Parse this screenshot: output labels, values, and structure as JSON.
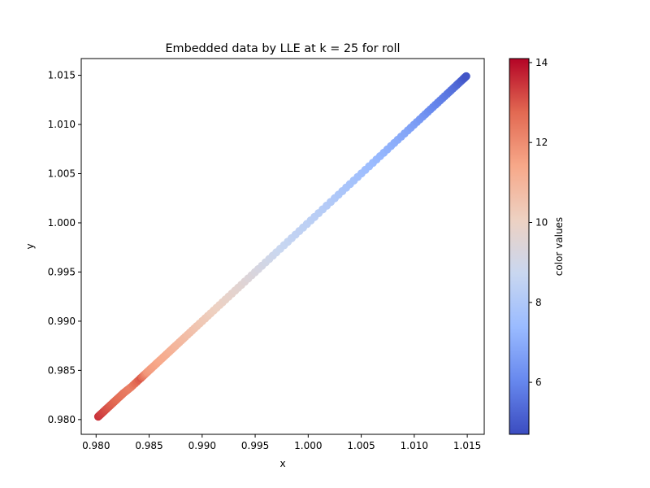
{
  "chart_data": {
    "type": "scatter",
    "title": "Embedded data by LLE at k = 25 for roll",
    "xlabel": "x",
    "ylabel": "y",
    "xlim": [
      0.9786,
      1.0166
    ],
    "ylim": [
      0.9785,
      1.0167
    ],
    "xticks": [
      0.98,
      0.985,
      0.99,
      0.995,
      1.0,
      1.005,
      1.01,
      1.015
    ],
    "xtick_labels": [
      "0.980",
      "0.985",
      "0.990",
      "0.995",
      "1.000",
      "1.005",
      "1.010",
      "1.015"
    ],
    "yticks": [
      0.98,
      0.985,
      0.99,
      0.995,
      1.0,
      1.005,
      1.01,
      1.015
    ],
    "ytick_labels": [
      "0.980",
      "0.985",
      "0.990",
      "0.995",
      "1.000",
      "1.005",
      "1.010",
      "1.015"
    ],
    "grid": false,
    "colorbar": {
      "label": "color values",
      "range": [
        4.7,
        14.1
      ],
      "ticks": [
        6,
        8,
        10,
        12,
        14
      ],
      "tick_labels": [
        "6",
        "8",
        "10",
        "12",
        "14"
      ],
      "colormap": "coolwarm",
      "colors": [
        "#3b4cc0",
        "#6788ee",
        "#9abbff",
        "#c9d7f0",
        "#edd1c2",
        "#f7a889",
        "#e26952",
        "#b40426"
      ]
    },
    "series": [
      {
        "x": [
          0.9802,
          0.9806,
          0.981,
          0.9815,
          0.982,
          0.9826,
          0.9833,
          0.9842,
          0.9848,
          0.9853,
          0.986,
          0.9868,
          0.9875,
          0.9884,
          0.9895,
          0.9908,
          0.9922,
          0.9937,
          0.9953,
          0.997,
          0.9988,
          1.0006,
          1.0025,
          1.0043,
          1.0061,
          1.0078,
          1.0094,
          1.0108,
          1.012,
          1.0131,
          1.014,
          1.0146,
          1.0149
        ],
        "y": [
          0.9803,
          0.9807,
          0.9811,
          0.9816,
          0.9821,
          0.9827,
          0.9833,
          0.9842,
          0.9848,
          0.9853,
          0.986,
          0.9868,
          0.9875,
          0.9884,
          0.9895,
          0.9908,
          0.9922,
          0.9937,
          0.9953,
          0.997,
          0.9988,
          1.0006,
          1.0025,
          1.0043,
          1.0061,
          1.0078,
          1.0094,
          1.0108,
          1.012,
          1.0131,
          1.014,
          1.0146,
          1.0149
        ],
        "c": [
          13.5,
          13.3,
          13.1,
          12.9,
          12.7,
          12.5,
          12.3,
          13.0,
          11.8,
          11.6,
          11.4,
          11.2,
          11.0,
          10.8,
          10.5,
          10.2,
          9.9,
          9.6,
          9.2,
          8.8,
          8.5,
          8.3,
          8.0,
          7.7,
          7.4,
          7.1,
          6.8,
          6.4,
          6.0,
          5.7,
          5.4,
          5.1,
          4.9
        ]
      }
    ]
  }
}
